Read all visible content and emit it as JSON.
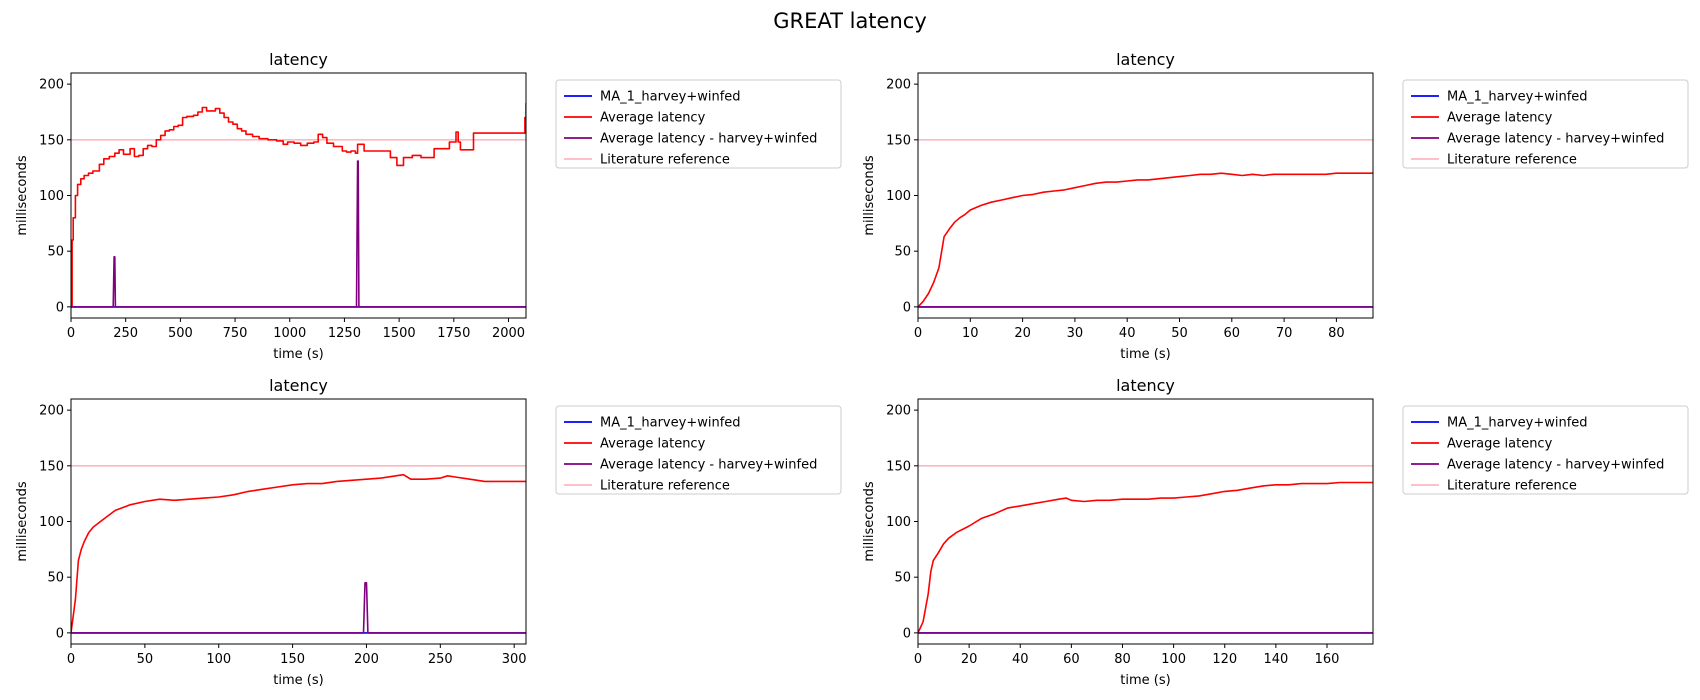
{
  "suptitle": "GREAT latency",
  "colors": {
    "ma": "#0000ff",
    "avg": "#ff0000",
    "avg_hw": "#800080",
    "ref": "#ffb6c1"
  },
  "chart_data": [
    {
      "type": "line",
      "title": "latency",
      "xlabel": "time (s)",
      "ylabel": "milliseconds",
      "xlim": [
        0,
        2080
      ],
      "ylim": [
        -10,
        210
      ],
      "xticks": [
        0,
        250,
        500,
        750,
        1000,
        1250,
        1500,
        1750,
        2000
      ],
      "yticks": [
        0,
        50,
        100,
        150,
        200
      ],
      "legend_position": "outside-right",
      "series": [
        {
          "name": "MA_1_harvey+winfed",
          "color_key": "ma",
          "x": [
            0,
            2080
          ],
          "y": [
            0,
            0
          ]
        },
        {
          "name": "Average latency",
          "color_key": "avg",
          "step": true,
          "x": [
            0,
            5,
            10,
            20,
            30,
            45,
            60,
            80,
            100,
            130,
            150,
            175,
            200,
            220,
            240,
            270,
            290,
            310,
            330,
            350,
            370,
            390,
            410,
            430,
            450,
            470,
            490,
            510,
            530,
            560,
            580,
            600,
            620,
            640,
            660,
            680,
            700,
            720,
            740,
            760,
            780,
            800,
            830,
            860,
            900,
            940,
            970,
            990,
            1020,
            1050,
            1080,
            1110,
            1130,
            1150,
            1170,
            1200,
            1240,
            1260,
            1280,
            1300,
            1310,
            1340,
            1360,
            1400,
            1460,
            1490,
            1520,
            1560,
            1600,
            1660,
            1700,
            1730,
            1760,
            1770,
            1780,
            1800,
            1840,
            1860,
            1900,
            1960,
            2000,
            2030,
            2060,
            2075,
            2080
          ],
          "y": [
            0,
            60,
            80,
            100,
            110,
            115,
            118,
            120,
            122,
            128,
            133,
            135,
            138,
            141,
            137,
            142,
            135,
            136,
            142,
            145,
            144,
            150,
            154,
            158,
            159,
            162,
            163,
            170,
            171,
            172,
            175,
            179,
            176,
            176,
            178,
            174,
            170,
            166,
            164,
            160,
            158,
            155,
            153,
            151,
            150,
            149,
            146,
            148,
            147,
            145,
            147,
            148,
            155,
            152,
            147,
            144,
            140,
            139,
            140,
            138,
            146,
            140,
            140,
            140,
            134,
            127,
            134,
            136,
            134,
            142,
            142,
            148,
            157,
            148,
            141,
            141,
            156,
            156,
            156,
            156,
            156,
            156,
            156,
            170,
            183
          ]
        },
        {
          "name": "Average latency - harvey+winfed",
          "color_key": "avg_hw",
          "x": [
            0,
            193,
            197,
            200,
            203,
            207,
            1305,
            1310,
            1313,
            1316,
            2080
          ],
          "y": [
            0,
            0,
            45,
            45,
            0,
            0,
            0,
            131,
            131,
            0,
            0
          ]
        },
        {
          "name": "Literature reference",
          "color_key": "ref",
          "x": [
            0,
            2080
          ],
          "y": [
            150,
            150
          ]
        }
      ]
    },
    {
      "type": "line",
      "title": "latency",
      "xlabel": "time (s)",
      "ylabel": "milliseconds",
      "xlim": [
        0,
        87
      ],
      "ylim": [
        -10,
        210
      ],
      "xticks": [
        0,
        10,
        20,
        30,
        40,
        50,
        60,
        70,
        80
      ],
      "yticks": [
        0,
        50,
        100,
        150,
        200
      ],
      "legend_position": "outside-right",
      "series": [
        {
          "name": "MA_1_harvey+winfed",
          "color_key": "ma",
          "x": [
            0,
            87
          ],
          "y": [
            0,
            0
          ]
        },
        {
          "name": "Average latency",
          "color_key": "avg",
          "x": [
            0,
            1,
            2,
            3,
            4,
            5,
            6,
            7,
            8,
            9,
            10,
            12,
            14,
            16,
            18,
            20,
            22,
            24,
            26,
            28,
            30,
            32,
            34,
            36,
            38,
            40,
            42,
            44,
            46,
            48,
            50,
            52,
            54,
            56,
            58,
            60,
            62,
            64,
            66,
            68,
            70,
            72,
            74,
            76,
            78,
            80,
            82,
            84,
            86,
            87
          ],
          "y": [
            0,
            5,
            12,
            22,
            35,
            63,
            70,
            76,
            80,
            83,
            87,
            91,
            94,
            96,
            98,
            100,
            101,
            103,
            104,
            105,
            107,
            109,
            111,
            112,
            112,
            113,
            114,
            114,
            115,
            116,
            117,
            118,
            119,
            119,
            120,
            119,
            118,
            119,
            118,
            119,
            119,
            119,
            119,
            119,
            119,
            120,
            120,
            120,
            120,
            120
          ]
        },
        {
          "name": "Average latency - harvey+winfed",
          "color_key": "avg_hw",
          "x": [
            0,
            87
          ],
          "y": [
            0,
            0
          ]
        },
        {
          "name": "Literature reference",
          "color_key": "ref",
          "x": [
            0,
            87
          ],
          "y": [
            150,
            150
          ]
        }
      ]
    },
    {
      "type": "line",
      "title": "latency",
      "xlabel": "time (s)",
      "ylabel": "milliseconds",
      "xlim": [
        0,
        308
      ],
      "ylim": [
        -10,
        210
      ],
      "xticks": [
        0,
        50,
        100,
        150,
        200,
        250,
        300
      ],
      "yticks": [
        0,
        50,
        100,
        150,
        200
      ],
      "legend_position": "outside-right",
      "series": [
        {
          "name": "MA_1_harvey+winfed",
          "color_key": "ma",
          "x": [
            0,
            308
          ],
          "y": [
            0,
            0
          ]
        },
        {
          "name": "Average latency",
          "color_key": "avg",
          "x": [
            0,
            3,
            5,
            7,
            9,
            12,
            15,
            20,
            25,
            30,
            40,
            50,
            60,
            70,
            80,
            90,
            100,
            110,
            120,
            130,
            140,
            150,
            160,
            170,
            180,
            190,
            200,
            210,
            220,
            225,
            230,
            240,
            250,
            255,
            260,
            270,
            280,
            290,
            300,
            308
          ],
          "y": [
            0,
            30,
            65,
            75,
            82,
            90,
            95,
            100,
            105,
            110,
            115,
            118,
            120,
            119,
            120,
            121,
            122,
            124,
            127,
            129,
            131,
            133,
            134,
            134,
            136,
            137,
            138,
            139,
            141,
            142,
            138,
            138,
            139,
            141,
            140,
            138,
            136,
            136,
            136,
            136
          ]
        },
        {
          "name": "Average latency - harvey+winfed",
          "color_key": "avg_hw",
          "x": [
            0,
            198,
            199,
            200,
            201,
            202,
            308
          ],
          "y": [
            0,
            0,
            45,
            45,
            0,
            0,
            0
          ]
        },
        {
          "name": "Literature reference",
          "color_key": "ref",
          "x": [
            0,
            308
          ],
          "y": [
            150,
            150
          ]
        }
      ]
    },
    {
      "type": "line",
      "title": "latency",
      "xlabel": "time (s)",
      "ylabel": "milliseconds",
      "xlim": [
        0,
        178
      ],
      "ylim": [
        -10,
        210
      ],
      "xticks": [
        0,
        20,
        40,
        60,
        80,
        100,
        120,
        140,
        160
      ],
      "yticks": [
        0,
        50,
        100,
        150,
        200
      ],
      "legend_position": "outside-right",
      "series": [
        {
          "name": "MA_1_harvey+winfed",
          "color_key": "ma",
          "x": [
            0,
            178
          ],
          "y": [
            0,
            0
          ]
        },
        {
          "name": "Average latency",
          "color_key": "avg",
          "x": [
            0,
            2,
            4,
            5,
            6,
            8,
            10,
            12,
            15,
            20,
            25,
            30,
            35,
            40,
            45,
            50,
            55,
            58,
            60,
            65,
            70,
            75,
            80,
            85,
            90,
            95,
            100,
            105,
            110,
            115,
            120,
            125,
            130,
            135,
            140,
            145,
            150,
            155,
            160,
            165,
            170,
            178
          ],
          "y": [
            0,
            10,
            35,
            55,
            65,
            72,
            80,
            85,
            90,
            96,
            103,
            107,
            112,
            114,
            116,
            118,
            120,
            121,
            119,
            118,
            119,
            119,
            120,
            120,
            120,
            121,
            121,
            122,
            123,
            125,
            127,
            128,
            130,
            132,
            133,
            133,
            134,
            134,
            134,
            135,
            135,
            135
          ]
        },
        {
          "name": "Average latency - harvey+winfed",
          "color_key": "avg_hw",
          "x": [
            0,
            178
          ],
          "y": [
            0,
            0
          ]
        },
        {
          "name": "Literature reference",
          "color_key": "ref",
          "x": [
            0,
            178
          ],
          "y": [
            150,
            150
          ]
        }
      ]
    }
  ]
}
